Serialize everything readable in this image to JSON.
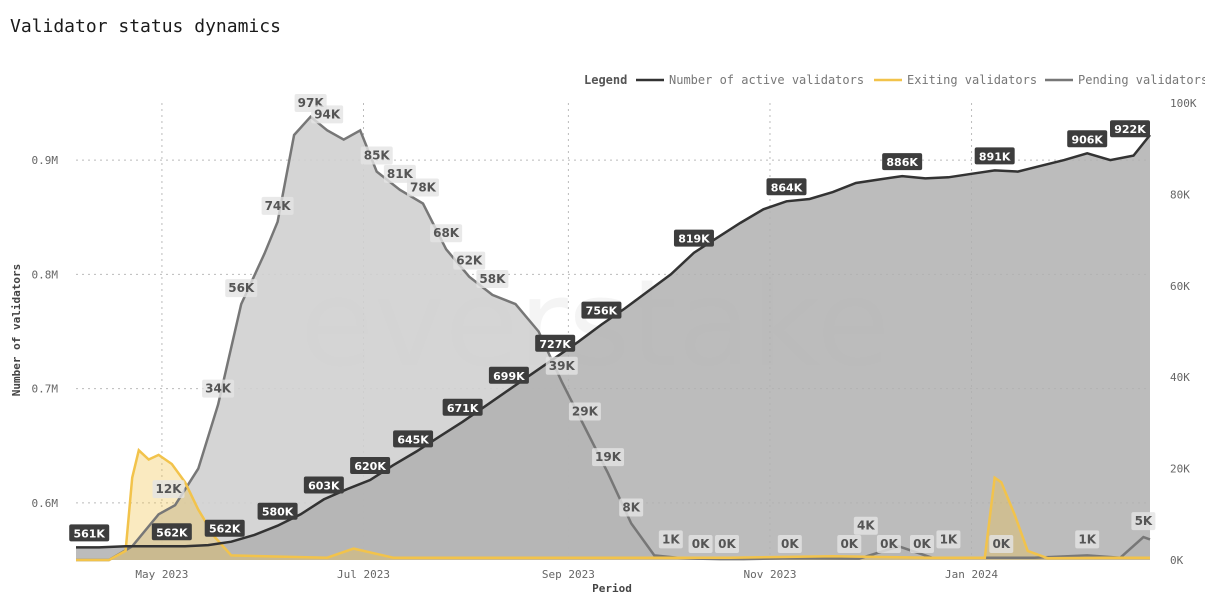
{
  "chart_data": {
    "type": "area",
    "title": "Validator status dynamics",
    "xlabel": "Period",
    "ylabel": "Number of validators",
    "legend_title": "Legend",
    "legend_position": "top-right",
    "left_axis": {
      "ticks": [
        "0.6M",
        "0.7M",
        "0.8M",
        "0.9M"
      ],
      "values": [
        600000,
        700000,
        800000,
        900000
      ],
      "range": [
        550000,
        950000
      ]
    },
    "right_axis": {
      "ticks": [
        "0K",
        "20K",
        "40K",
        "60K",
        "80K",
        "100K"
      ],
      "values": [
        0,
        20000,
        40000,
        60000,
        80000,
        100000
      ],
      "range": [
        0,
        100000
      ]
    },
    "x_range": [
      "2023-04-05",
      "2024-02-24"
    ],
    "x_ticks": [
      {
        "label": "May 2023",
        "date": "2023-05-01"
      },
      {
        "label": "Jul 2023",
        "date": "2023-07-01"
      },
      {
        "label": "Sep 2023",
        "date": "2023-09-01"
      },
      {
        "label": "Nov 2023",
        "date": "2023-11-01"
      },
      {
        "label": "Jan 2024",
        "date": "2024-01-01"
      }
    ],
    "grid": true,
    "colors": {
      "active": "#333333",
      "exiting": "#f2c34b",
      "pending": "#777777",
      "active_fill": "#b0b0b0",
      "pending_fill": "#d0d0d0"
    },
    "series": [
      {
        "name": "Number of active validators",
        "axis": "left",
        "x": [
          "2023-04-05",
          "2023-04-12",
          "2023-04-20",
          "2023-04-25",
          "2023-05-01",
          "2023-05-08",
          "2023-05-15",
          "2023-05-22",
          "2023-05-29",
          "2023-06-05",
          "2023-06-12",
          "2023-06-19",
          "2023-06-26",
          "2023-07-03",
          "2023-07-10",
          "2023-07-17",
          "2023-07-24",
          "2023-07-31",
          "2023-08-07",
          "2023-08-14",
          "2023-08-21",
          "2023-08-28",
          "2023-09-04",
          "2023-09-11",
          "2023-09-18",
          "2023-09-25",
          "2023-10-02",
          "2023-10-09",
          "2023-10-16",
          "2023-10-23",
          "2023-10-30",
          "2023-11-06",
          "2023-11-13",
          "2023-11-20",
          "2023-11-27",
          "2023-12-04",
          "2023-12-11",
          "2023-12-18",
          "2023-12-25",
          "2024-01-01",
          "2024-01-08",
          "2024-01-15",
          "2024-01-22",
          "2024-01-29",
          "2024-02-05",
          "2024-02-12",
          "2024-02-19",
          "2024-02-24"
        ],
        "values": [
          561000,
          561000,
          562000,
          562000,
          562000,
          562000,
          563000,
          566000,
          572000,
          580000,
          590000,
          603000,
          612000,
          620000,
          633000,
          645000,
          658000,
          671000,
          685000,
          699000,
          713000,
          727000,
          741000,
          756000,
          770000,
          785000,
          800000,
          819000,
          832000,
          845000,
          857000,
          864000,
          866000,
          872000,
          880000,
          883000,
          886000,
          884000,
          885000,
          888000,
          891000,
          890000,
          895000,
          900000,
          906000,
          900000,
          904000,
          922000
        ]
      },
      {
        "name": "Exiting validators",
        "axis": "right",
        "x": [
          "2023-04-05",
          "2023-04-15",
          "2023-04-20",
          "2023-04-22",
          "2023-04-24",
          "2023-04-27",
          "2023-04-30",
          "2023-05-04",
          "2023-05-08",
          "2023-05-12",
          "2023-05-17",
          "2023-05-22",
          "2023-06-20",
          "2023-06-28",
          "2023-07-10",
          "2023-08-10",
          "2023-09-20",
          "2023-10-20",
          "2023-11-20",
          "2023-12-20",
          "2024-01-05",
          "2024-01-08",
          "2024-01-10",
          "2024-01-14",
          "2024-01-18",
          "2024-01-24",
          "2024-02-10",
          "2024-02-24"
        ],
        "values": [
          0,
          0,
          2000,
          18000,
          24000,
          22000,
          23000,
          21000,
          17000,
          11000,
          5000,
          1000,
          500,
          2500,
          500,
          500,
          500,
          500,
          800,
          500,
          500,
          18000,
          17000,
          10000,
          2000,
          400,
          500,
          500
        ]
      },
      {
        "name": "Pending validators",
        "axis": "right",
        "x": [
          "2023-04-05",
          "2023-04-15",
          "2023-04-22",
          "2023-04-30",
          "2023-05-05",
          "2023-05-12",
          "2023-05-18",
          "2023-05-25",
          "2023-06-01",
          "2023-06-05",
          "2023-06-10",
          "2023-06-15",
          "2023-06-20",
          "2023-06-25",
          "2023-06-30",
          "2023-07-05",
          "2023-07-12",
          "2023-07-19",
          "2023-07-26",
          "2023-08-02",
          "2023-08-09",
          "2023-08-16",
          "2023-08-23",
          "2023-08-30",
          "2023-09-06",
          "2023-09-13",
          "2023-09-20",
          "2023-09-27",
          "2023-10-04",
          "2023-10-10",
          "2023-10-17",
          "2023-10-24",
          "2023-11-07",
          "2023-11-28",
          "2023-12-10",
          "2023-12-20",
          "2024-01-01",
          "2024-01-20",
          "2024-02-05",
          "2024-02-15",
          "2024-02-22",
          "2024-02-24"
        ],
        "values": [
          0,
          0,
          3000,
          10000,
          12000,
          20000,
          34000,
          56000,
          67000,
          74000,
          93000,
          97000,
          94000,
          92000,
          94000,
          85000,
          81000,
          78000,
          68000,
          62000,
          58000,
          56000,
          50000,
          39000,
          29000,
          19000,
          8000,
          1000,
          500,
          300,
          200,
          200,
          400,
          300,
          3000,
          500,
          500,
          500,
          1000,
          500,
          5000,
          4500
        ]
      }
    ],
    "data_labels": {
      "active": [
        {
          "date": "2023-04-09",
          "text": "561K"
        },
        {
          "date": "2023-05-04",
          "text": "562K"
        },
        {
          "date": "2023-05-20",
          "text": "562K"
        },
        {
          "date": "2023-06-05",
          "text": "580K"
        },
        {
          "date": "2023-06-19",
          "text": "603K"
        },
        {
          "date": "2023-07-03",
          "text": "620K"
        },
        {
          "date": "2023-07-16",
          "text": "645K"
        },
        {
          "date": "2023-07-31",
          "text": "671K"
        },
        {
          "date": "2023-08-14",
          "text": "699K"
        },
        {
          "date": "2023-08-28",
          "text": "727K"
        },
        {
          "date": "2023-09-11",
          "text": "756K"
        },
        {
          "date": "2023-10-09",
          "text": "819K"
        },
        {
          "date": "2023-11-06",
          "text": "864K"
        },
        {
          "date": "2023-12-11",
          "text": "886K"
        },
        {
          "date": "2024-01-08",
          "text": "891K"
        },
        {
          "date": "2024-02-05",
          "text": "906K"
        },
        {
          "date": "2024-02-22",
          "text": "922K"
        }
      ],
      "pending": [
        {
          "date": "2023-05-03",
          "value": 12000,
          "text": "12K"
        },
        {
          "date": "2023-05-18",
          "value": 34000,
          "text": "34K"
        },
        {
          "date": "2023-05-25",
          "value": 56000,
          "text": "56K"
        },
        {
          "date": "2023-06-05",
          "value": 74000,
          "text": "74K"
        },
        {
          "date": "2023-06-15",
          "value": 97000,
          "text": "97K"
        },
        {
          "date": "2023-06-20",
          "value": 94000,
          "text": "94K"
        },
        {
          "date": "2023-07-05",
          "value": 85000,
          "text": "85K"
        },
        {
          "date": "2023-07-12",
          "value": 81000,
          "text": "81K"
        },
        {
          "date": "2023-07-19",
          "value": 78000,
          "text": "78K"
        },
        {
          "date": "2023-07-26",
          "value": 68000,
          "text": "68K"
        },
        {
          "date": "2023-08-02",
          "value": 62000,
          "text": "62K"
        },
        {
          "date": "2023-08-09",
          "value": 58000,
          "text": "58K"
        },
        {
          "date": "2023-08-30",
          "value": 39000,
          "text": "39K"
        },
        {
          "date": "2023-09-06",
          "value": 29000,
          "text": "29K"
        },
        {
          "date": "2023-09-13",
          "value": 19000,
          "text": "19K"
        },
        {
          "date": "2023-09-20",
          "value": 8000,
          "text": "8K"
        },
        {
          "date": "2023-10-02",
          "value": 1000,
          "text": "1K"
        },
        {
          "date": "2023-10-11",
          "value": 0,
          "text": "0K"
        },
        {
          "date": "2023-10-19",
          "value": 0,
          "text": "0K"
        },
        {
          "date": "2023-11-07",
          "value": 0,
          "text": "0K"
        },
        {
          "date": "2023-11-25",
          "value": 0,
          "text": "0K"
        },
        {
          "date": "2023-11-30",
          "value": 4000,
          "text": "4K"
        },
        {
          "date": "2023-12-07",
          "value": 0,
          "text": "0K"
        },
        {
          "date": "2023-12-17",
          "value": 0,
          "text": "0K"
        },
        {
          "date": "2023-12-25",
          "value": 1000,
          "text": "1K"
        },
        {
          "date": "2024-01-10",
          "value": 0,
          "text": "0K"
        },
        {
          "date": "2024-02-05",
          "value": 1000,
          "text": "1K"
        },
        {
          "date": "2024-02-22",
          "value": 5000,
          "text": "5K"
        }
      ]
    }
  }
}
